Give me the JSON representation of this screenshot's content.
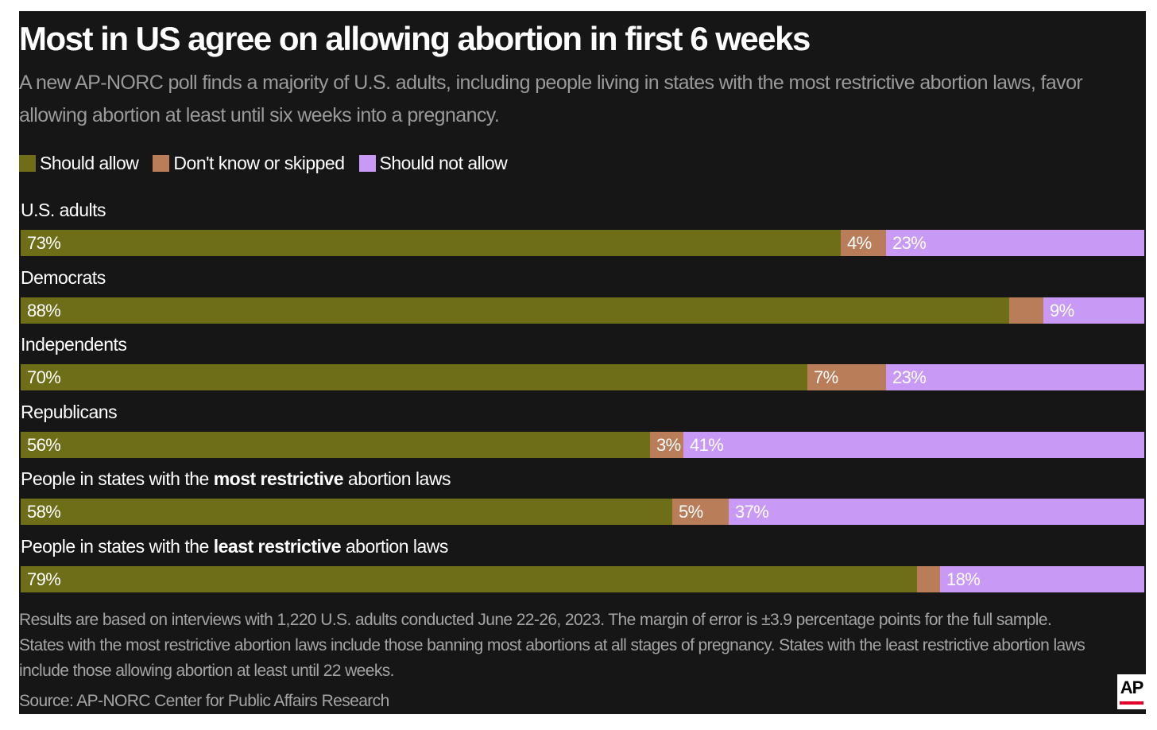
{
  "chart_data": {
    "type": "bar",
    "orientation": "horizontal",
    "stacked": true,
    "title": "Most in US agree on allowing abortion in first 6 weeks",
    "subtitle": "A new AP-NORC poll finds a majority of U.S. adults, including people living in states with the most restrictive abortion laws, favor allowing abortion at least until six weeks into a pregnancy.",
    "legend_position": "top-left",
    "grid": false,
    "xlim": [
      0,
      100
    ],
    "series": [
      {
        "name": "Should allow",
        "color": "#6e6d18"
      },
      {
        "name": "Don't know or skipped",
        "color": "#b97d5a"
      },
      {
        "name": "Should not allow",
        "color": "#c89af5"
      }
    ],
    "groups": [
      {
        "label_pre": "U.S. adults",
        "label_bold": "",
        "label_post": "",
        "values": [
          73,
          4,
          23
        ],
        "labels": [
          "73%",
          "4%",
          "23%"
        ]
      },
      {
        "label_pre": "Democrats",
        "label_bold": "",
        "label_post": "",
        "values": [
          88,
          3,
          9
        ],
        "labels": [
          "88%",
          "",
          "9%"
        ]
      },
      {
        "label_pre": "Independents",
        "label_bold": "",
        "label_post": "",
        "values": [
          70,
          7,
          23
        ],
        "labels": [
          "70%",
          "7%",
          "23%"
        ]
      },
      {
        "label_pre": "Republicans",
        "label_bold": "",
        "label_post": "",
        "values": [
          56,
          3,
          41
        ],
        "labels": [
          "56%",
          "3%",
          "41%"
        ]
      },
      {
        "label_pre": "People in states with the ",
        "label_bold": "most restrictive",
        "label_post": " abortion laws",
        "values": [
          58,
          5,
          37
        ],
        "labels": [
          "58%",
          "5%",
          "37%"
        ]
      },
      {
        "label_pre": "People in states with the ",
        "label_bold": "least restrictive",
        "label_post": " abortion laws",
        "values": [
          79,
          2,
          18
        ],
        "labels": [
          "79%",
          "",
          "18%"
        ]
      }
    ],
    "note": "Results are based on interviews with 1,220 U.S. adults conducted June 22-26, 2023. The margin of error is ±3.9 percentage points for the full sample. States with the most restrictive abortion laws include those banning most abortions at all stages of pregnancy. States with the least restrictive abortion laws include those allowing abortion at least until 22 weeks.",
    "source": "Source: AP-NORC Center for Public Affairs Research"
  },
  "logo": {
    "text": "AP",
    "accent": "#e4002b"
  }
}
